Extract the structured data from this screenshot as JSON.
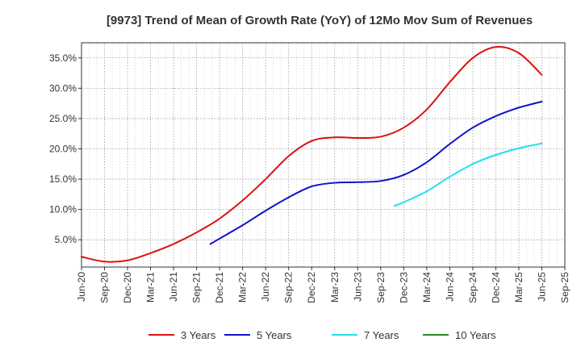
{
  "chart_data": {
    "type": "line",
    "title": "[9973]  Trend of Mean of Growth Rate (YoY) of 12Mo Mov Sum of Revenues",
    "xlabel": "",
    "ylabel": "",
    "x_tick_labels": [
      "Jun-20",
      "Sep-20",
      "Dec-20",
      "Mar-21",
      "Jun-21",
      "Sep-21",
      "Dec-21",
      "Mar-22",
      "Jun-22",
      "Sep-22",
      "Dec-22",
      "Mar-23",
      "Jun-23",
      "Sep-23",
      "Dec-23",
      "Mar-24",
      "Jun-24",
      "Sep-24",
      "Dec-24",
      "Mar-25",
      "Jun-25",
      "Sep-25"
    ],
    "y_tick_labels": [
      "5.0%",
      "10.0%",
      "15.0%",
      "20.0%",
      "25.0%",
      "30.0%",
      "35.0%"
    ],
    "y_ticks": [
      5,
      10,
      15,
      20,
      25,
      30,
      35
    ],
    "ylim": [
      0.5,
      37.5
    ],
    "grid": true,
    "legend_position": "bottom",
    "series": [
      {
        "name": "3 Years",
        "color": "#dd1111",
        "points": [
          [
            0,
            2.2
          ],
          [
            1,
            1.4
          ],
          [
            2,
            1.6
          ],
          [
            3,
            2.8
          ],
          [
            4,
            4.3
          ],
          [
            5,
            6.2
          ],
          [
            6,
            8.5
          ],
          [
            7,
            11.5
          ],
          [
            8,
            15.0
          ],
          [
            9,
            18.8
          ],
          [
            10,
            21.3
          ],
          [
            11,
            21.9
          ],
          [
            12,
            21.8
          ],
          [
            13,
            22.0
          ],
          [
            14,
            23.5
          ],
          [
            15,
            26.5
          ],
          [
            16,
            31.0
          ],
          [
            17,
            35.0
          ],
          [
            18,
            36.8
          ],
          [
            19,
            35.8
          ],
          [
            20,
            32.2
          ]
        ]
      },
      {
        "name": "5 Years",
        "color": "#1111cc",
        "points": [
          [
            5.6,
            4.3
          ],
          [
            6,
            5.2
          ],
          [
            7,
            7.4
          ],
          [
            8,
            9.8
          ],
          [
            9,
            12.0
          ],
          [
            10,
            13.8
          ],
          [
            11,
            14.4
          ],
          [
            12,
            14.5
          ],
          [
            13,
            14.7
          ],
          [
            14,
            15.7
          ],
          [
            15,
            17.8
          ],
          [
            16,
            20.8
          ],
          [
            17,
            23.5
          ],
          [
            18,
            25.4
          ],
          [
            19,
            26.8
          ],
          [
            20,
            27.8
          ]
        ]
      },
      {
        "name": "7 Years",
        "color": "#22e0ee",
        "points": [
          [
            13.6,
            10.6
          ],
          [
            14,
            11.2
          ],
          [
            15,
            13.0
          ],
          [
            16,
            15.4
          ],
          [
            17,
            17.5
          ],
          [
            18,
            19.0
          ],
          [
            19,
            20.1
          ],
          [
            20,
            20.9
          ]
        ]
      },
      {
        "name": "10 Years",
        "color": "#228822",
        "points": []
      }
    ]
  }
}
